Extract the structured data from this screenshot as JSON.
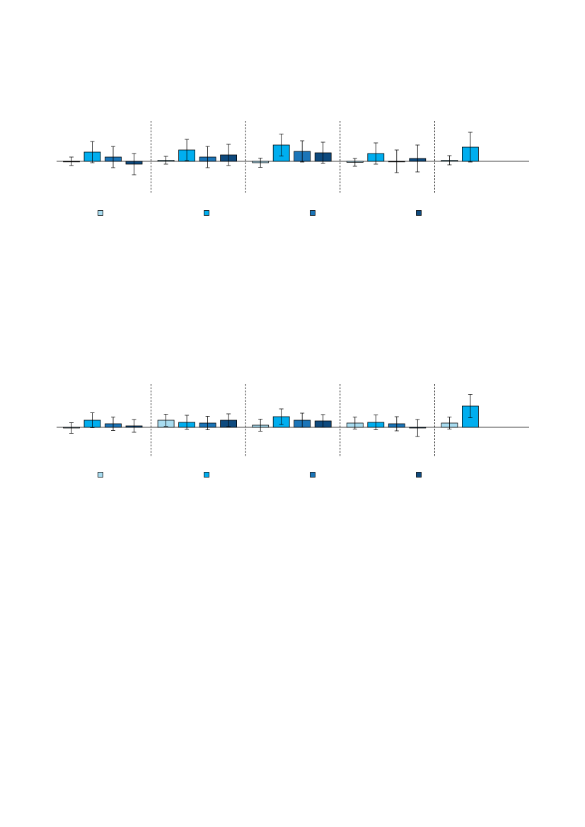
{
  "chart_data": [
    {
      "type": "bar",
      "categories": [
        null,
        null,
        null,
        null,
        null
      ],
      "ylim": [
        -46,
        57
      ],
      "series": [
        {
          "color": "#a8dcf0",
          "values": [
            0,
            1.5,
            -2,
            -1.5,
            1.5
          ],
          "errors": [
            6,
            5.5,
            6.5,
            5.5,
            6.5
          ]
        },
        {
          "color": "#00aeef",
          "values": [
            13,
            16,
            23,
            11,
            20
          ],
          "errors": [
            15,
            15,
            15.5,
            15,
            21
          ]
        },
        {
          "color": "#1b75b8",
          "values": [
            6,
            6,
            14,
            0,
            null
          ],
          "errors": [
            15,
            15,
            15,
            16,
            null
          ]
        },
        {
          "color": "#0e4a7e",
          "values": [
            -4,
            9,
            12,
            4,
            null
          ],
          "errors": [
            15,
            15,
            15,
            19,
            null
          ]
        }
      ]
    },
    {
      "type": "bar",
      "categories": [
        null,
        null,
        null,
        null,
        null
      ],
      "ylim": [
        -41,
        61
      ],
      "series": [
        {
          "color": "#a8dcf0",
          "values": [
            -1,
            10,
            3,
            6,
            6
          ],
          "errors": [
            7.5,
            8.5,
            8.5,
            8.5,
            8.5
          ]
        },
        {
          "color": "#00aeef",
          "values": [
            10,
            7,
            15,
            7,
            30
          ],
          "errors": [
            10.5,
            10,
            11,
            10.5,
            16.5
          ]
        },
        {
          "color": "#1b75b8",
          "values": [
            5,
            6,
            10,
            5,
            null
          ],
          "errors": [
            9.5,
            9.5,
            10,
            10,
            null
          ]
        },
        {
          "color": "#0e4a7e",
          "values": [
            2,
            10,
            9,
            -1,
            null
          ],
          "errors": [
            9,
            9,
            9,
            12,
            null
          ]
        }
      ]
    }
  ]
}
